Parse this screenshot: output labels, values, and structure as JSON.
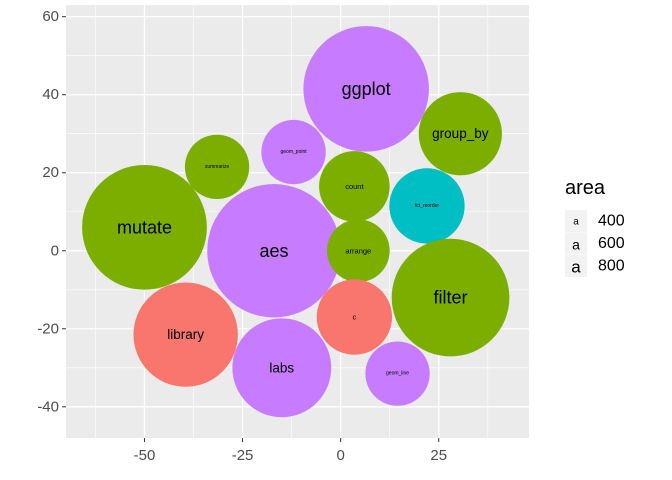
{
  "chart_data": {
    "type": "scatter",
    "title": "",
    "xlabel": "",
    "ylabel": "",
    "xlim": [
      -70,
      48
    ],
    "ylim": [
      -48,
      63
    ],
    "x_ticks": [
      -50,
      -25,
      0,
      25
    ],
    "y_ticks": [
      -40,
      -20,
      0,
      20,
      40,
      60
    ],
    "grid": true,
    "legend": {
      "title": "area",
      "position": "right",
      "symbol": "a",
      "entries": [
        {
          "label": "400",
          "value": 400
        },
        {
          "label": "600",
          "value": 600
        },
        {
          "label": "800",
          "value": 800
        }
      ]
    },
    "colors": {
      "red": "#F8766D",
      "green": "#7CAE00",
      "teal": "#00BFC4",
      "purple": "#C77CFF",
      "panel": "#EBEBEB",
      "grid": "#FFFFFF"
    },
    "points": [
      {
        "label": "ggplot",
        "x": 6.5,
        "y": 41.5,
        "r": 16,
        "color": "purple",
        "area": 800
      },
      {
        "label": "group_by",
        "x": 30.5,
        "y": 30,
        "r": 10.6,
        "color": "green",
        "area": 600
      },
      {
        "label": "geom_point",
        "x": -12,
        "y": 25.3,
        "r": 8.2,
        "color": "purple",
        "area": 400
      },
      {
        "label": "summarize",
        "x": -31.5,
        "y": 21.5,
        "r": 8.2,
        "color": "green",
        "area": 400
      },
      {
        "label": "count",
        "x": 3.5,
        "y": 16.5,
        "r": 9,
        "color": "green",
        "area": 400
      },
      {
        "label": "fct_reorder",
        "x": 22,
        "y": 11.5,
        "r": 9.6,
        "color": "teal",
        "area": 400
      },
      {
        "label": "mutate",
        "x": -50,
        "y": 6,
        "r": 15.9,
        "color": "green",
        "area": 800
      },
      {
        "label": "aes",
        "x": -17,
        "y": 0,
        "r": 17,
        "color": "purple",
        "area": 800
      },
      {
        "label": "arrange",
        "x": 4.5,
        "y": 0,
        "r": 8,
        "color": "green",
        "area": 400
      },
      {
        "label": "filter",
        "x": 28,
        "y": -12,
        "r": 15,
        "color": "green",
        "area": 800
      },
      {
        "label": "c",
        "x": 3.5,
        "y": -17,
        "r": 9.6,
        "color": "red",
        "area": 400
      },
      {
        "label": "library",
        "x": -39.5,
        "y": -21.5,
        "r": 13.3,
        "color": "red",
        "area": 600
      },
      {
        "label": "labs",
        "x": -15,
        "y": -30,
        "r": 12.6,
        "color": "purple",
        "area": 600
      },
      {
        "label": "geom_line",
        "x": 14.5,
        "y": -31.5,
        "r": 8.2,
        "color": "purple",
        "area": 400
      }
    ]
  }
}
